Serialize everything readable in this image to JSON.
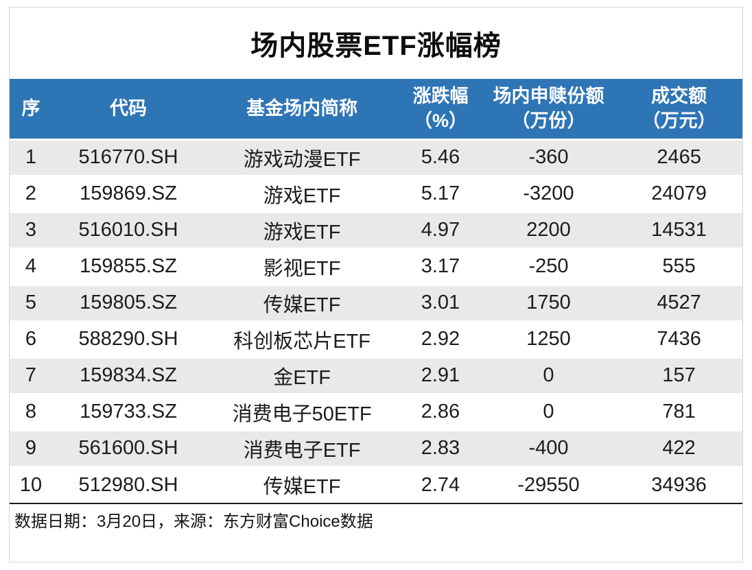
{
  "title": "场内股票ETF涨幅榜",
  "colors": {
    "header_bg": "#2E75B6",
    "row_alt_bg": "#E9E9E9",
    "text": "#1C1C1C",
    "footer_border": "#1A1A1A"
  },
  "chart_data": {
    "type": "table",
    "title": "场内股票ETF涨幅榜",
    "columns": [
      {
        "line1": "序",
        "line2": ""
      },
      {
        "line1": "代码",
        "line2": ""
      },
      {
        "line1": "基金场内简称",
        "line2": ""
      },
      {
        "line1": "涨跌幅",
        "line2": "（%）"
      },
      {
        "line1": "场内申赎份额",
        "line2": "（万份）"
      },
      {
        "line1": "成交额",
        "line2": "（万元）"
      }
    ],
    "rows": [
      [
        "1",
        "516770.SH",
        "游戏动漫ETF",
        "5.46",
        "-360",
        "2465"
      ],
      [
        "2",
        "159869.SZ",
        "游戏ETF",
        "5.17",
        "-3200",
        "24079"
      ],
      [
        "3",
        "516010.SH",
        "游戏ETF",
        "4.97",
        "2200",
        "14531"
      ],
      [
        "4",
        "159855.SZ",
        "影视ETF",
        "3.17",
        "-250",
        "555"
      ],
      [
        "5",
        "159805.SZ",
        "传媒ETF",
        "3.01",
        "1750",
        "4527"
      ],
      [
        "6",
        "588290.SH",
        "科创板芯片ETF",
        "2.92",
        "1250",
        "7436"
      ],
      [
        "7",
        "159834.SZ",
        "金ETF",
        "2.91",
        "0",
        "157"
      ],
      [
        "8",
        "159733.SZ",
        "消费电子50ETF",
        "2.86",
        "0",
        "781"
      ],
      [
        "9",
        "561600.SH",
        "消费电子ETF",
        "2.83",
        "-400",
        "422"
      ],
      [
        "10",
        "512980.SH",
        "传媒ETF",
        "2.74",
        "-29550",
        "34936"
      ]
    ],
    "footnote": "数据日期：3月20日，来源：东方财富Choice数据"
  },
  "footer": {
    "note": "数据日期：3月20日，来源：东方财富Choice数据"
  }
}
